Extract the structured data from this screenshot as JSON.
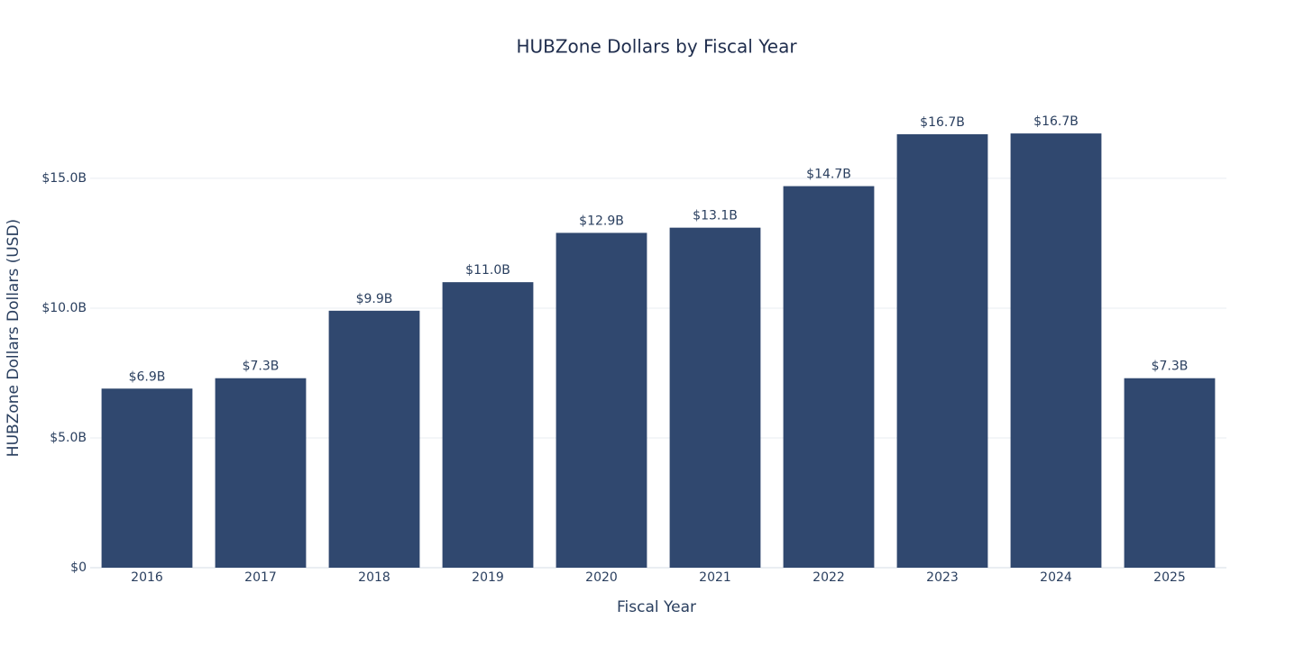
{
  "chart_data": {
    "type": "bar",
    "title": "HUBZone Dollars by Fiscal Year",
    "x_label": "Fiscal Year",
    "y_label": "HUBZone Dollars Dollars (USD)",
    "categories": [
      "2016",
      "2017",
      "2018",
      "2019",
      "2020",
      "2021",
      "2022",
      "2023",
      "2024",
      "2025"
    ],
    "values": [
      6900000000,
      7300000000,
      9900000000,
      11000000000,
      12900000000,
      13100000000,
      14700000000,
      16700000000,
      16730000000,
      7300000000
    ],
    "value_labels": [
      "$6.9B",
      "$7.3B",
      "$9.9B",
      "$11.0B",
      "$12.9B",
      "$13.1B",
      "$14.7B",
      "$16.7B",
      "$16.7B",
      "$7.3B"
    ],
    "color": "#30486f",
    "ylim": [
      0,
      18400000000
    ],
    "yticks": [
      {
        "value": 0,
        "label": "$0"
      },
      {
        "value": 5000000000,
        "label": "$5.0B"
      },
      {
        "value": 10000000000,
        "label": "$10.0B"
      },
      {
        "value": 15000000000,
        "label": "$15.0B"
      }
    ],
    "grid": true
  }
}
